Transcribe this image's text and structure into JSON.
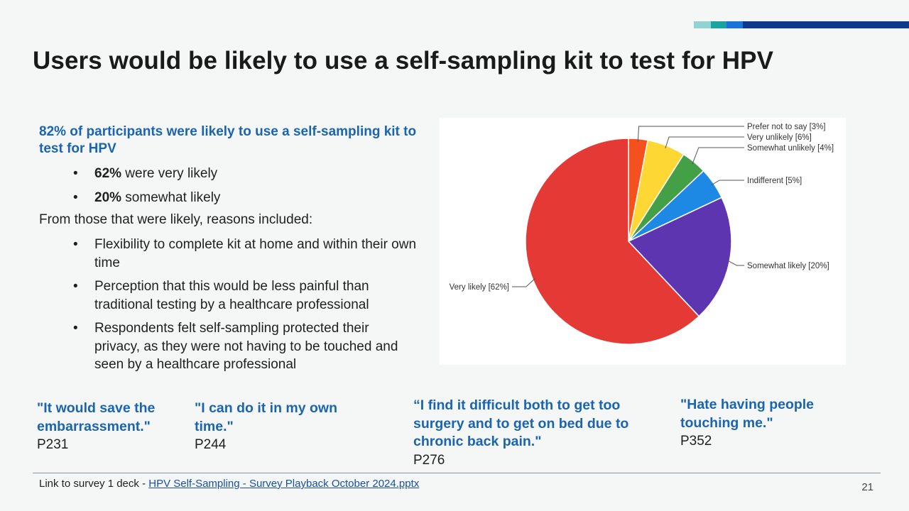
{
  "slide": {
    "title": "Users would be likely to use a self-sampling kit to test for HPV",
    "page_number": "21",
    "accent_colors": [
      "#8fd4d0",
      "#1aa3a0",
      "#1a73d8",
      "#0d3a8a"
    ]
  },
  "summary": {
    "lead": "82% of participants were likely to use a self-sampling kit to test for HPV",
    "stats": [
      {
        "value": "62%",
        "text": " were very likely"
      },
      {
        "value": "20%",
        "text": " somewhat likely"
      }
    ],
    "reasons_intro": "From those that were likely, reasons included:",
    "reasons": [
      "Flexibility to complete kit at home and within their own time",
      "Perception that this would be less painful than traditional testing by a healthcare professional",
      "Respondents felt self-sampling protected their privacy, as they were not having to be touched and seen by a healthcare professional"
    ],
    "bullet_glyph": "•"
  },
  "chart_data": {
    "type": "pie",
    "slices": [
      {
        "label": "Prefer not to say [3%]",
        "value": 3,
        "color": "#f4511e"
      },
      {
        "label": "Very unlikely [6%]",
        "value": 6,
        "color": "#fdd835"
      },
      {
        "label": "Somewhat unlikely [4%]",
        "value": 4,
        "color": "#43a047"
      },
      {
        "label": "Indifferent [5%]",
        "value": 5,
        "color": "#1e88e5"
      },
      {
        "label": "Somewhat likely [20%]",
        "value": 20,
        "color": "#5e35b1"
      },
      {
        "label": "Very likely [62%]",
        "value": 62,
        "color": "#e53935"
      }
    ],
    "start": "12 o'clock",
    "direction": "clockwise"
  },
  "quotes": [
    {
      "text": "\"It would save the embarrassment.\"",
      "participant": "P231"
    },
    {
      "text": "\"I can do it in my own time.\"",
      "participant": "P244"
    },
    {
      "text": "“I find it difficult  both to get too surgery and to get on bed due to chronic back pain.\"",
      "participant": "P276"
    },
    {
      "text": "\"Hate having people touching me.\"",
      "participant": "P352"
    }
  ],
  "footer": {
    "prefix": "Link to survey 1 deck - ",
    "link_text": "HPV Self-Sampling - Survey Playback October 2024.pptx"
  }
}
